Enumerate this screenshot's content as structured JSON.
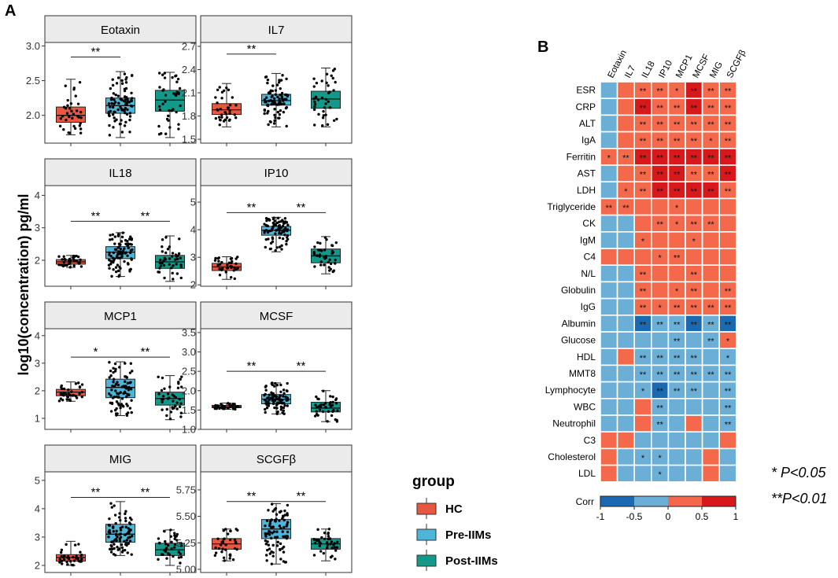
{
  "figure": {
    "panel_a_label": "A",
    "panel_b_label": "B",
    "y_axis_label": "log10(concentration) pg/ml",
    "legend": {
      "title": "group",
      "items": [
        {
          "label": "HC",
          "color": "#E8573F"
        },
        {
          "label": "Pre-IIMs",
          "color": "#4CB5D8"
        },
        {
          "label": "Post-IIMs",
          "color": "#12998A"
        }
      ]
    },
    "significance_note_1": "*  P<0.05",
    "significance_note_2": "**P<0.01"
  },
  "chart_data": [
    {
      "type": "box",
      "title": "Eotaxin",
      "ylim": [
        1.6,
        3.05
      ],
      "yticks": [
        "2.0",
        "2.5",
        "3.0"
      ],
      "groups": [
        "HC",
        "Pre-IIMs",
        "Post-IIMs"
      ],
      "boxes": [
        {
          "min": 1.72,
          "q1": 1.9,
          "median": 2.0,
          "q3": 2.12,
          "max": 2.52
        },
        {
          "min": 1.68,
          "q1": 2.03,
          "median": 2.14,
          "q3": 2.25,
          "max": 2.63
        },
        {
          "min": 1.68,
          "q1": 2.06,
          "median": 2.22,
          "q3": 2.36,
          "max": 2.62
        }
      ],
      "n_points": [
        35,
        85,
        40
      ],
      "comparisons": [
        {
          "from": 0,
          "to": 1,
          "label": "**",
          "y": 2.84
        }
      ]
    },
    {
      "type": "box",
      "title": "IL7",
      "ylim": [
        1.45,
        2.75
      ],
      "yticks": [
        "1.5",
        "1.8",
        "2.1",
        "2.4",
        "2.7"
      ],
      "groups": [
        "HC",
        "Pre-IIMs",
        "Post-IIMs"
      ],
      "boxes": [
        {
          "min": 1.66,
          "q1": 1.82,
          "median": 1.88,
          "q3": 1.96,
          "max": 2.22
        },
        {
          "min": 1.66,
          "q1": 1.94,
          "median": 2.0,
          "q3": 2.08,
          "max": 2.35
        },
        {
          "min": 1.66,
          "q1": 1.9,
          "median": 2.02,
          "q3": 2.12,
          "max": 2.42
        }
      ],
      "n_points": [
        35,
        85,
        40
      ],
      "comparisons": [
        {
          "from": 0,
          "to": 1,
          "label": "**",
          "y": 2.6
        }
      ]
    },
    {
      "type": "box",
      "title": "IL18",
      "ylim": [
        1.2,
        4.3
      ],
      "yticks": [
        "2",
        "3",
        "4"
      ],
      "groups": [
        "HC",
        "Pre-IIMs",
        "Post-IIMs"
      ],
      "boxes": [
        {
          "min": 1.78,
          "q1": 1.88,
          "median": 1.95,
          "q3": 2.02,
          "max": 2.15
        },
        {
          "min": 1.5,
          "q1": 2.05,
          "median": 2.25,
          "q3": 2.42,
          "max": 2.85
        },
        {
          "min": 1.35,
          "q1": 1.75,
          "median": 1.95,
          "q3": 2.15,
          "max": 2.75
        }
      ],
      "n_points": [
        35,
        85,
        40
      ],
      "comparisons": [
        {
          "from": 0,
          "to": 1,
          "label": "**",
          "y": 3.2
        },
        {
          "from": 1,
          "to": 2,
          "label": "**",
          "y": 3.2
        }
      ]
    },
    {
      "type": "box",
      "title": "IP10",
      "ylim": [
        1.95,
        5.6
      ],
      "yticks": [
        "2",
        "3",
        "4",
        "5"
      ],
      "groups": [
        "HC",
        "Pre-IIMs",
        "Post-IIMs"
      ],
      "boxes": [
        {
          "min": 2.2,
          "q1": 2.52,
          "median": 2.65,
          "q3": 2.78,
          "max": 3.02
        },
        {
          "min": 3.2,
          "q1": 3.8,
          "median": 3.98,
          "q3": 4.12,
          "max": 4.45
        },
        {
          "min": 2.4,
          "q1": 2.8,
          "median": 3.05,
          "q3": 3.3,
          "max": 3.75
        }
      ],
      "n_points": [
        35,
        85,
        40
      ],
      "comparisons": [
        {
          "from": 0,
          "to": 1,
          "label": "**",
          "y": 4.62
        },
        {
          "from": 1,
          "to": 2,
          "label": "**",
          "y": 4.62
        }
      ]
    },
    {
      "type": "box",
      "title": "MCP1",
      "ylim": [
        0.6,
        4.25
      ],
      "yticks": [
        "1",
        "2",
        "3",
        "4"
      ],
      "groups": [
        "HC",
        "Pre-IIMs",
        "Post-IIMs"
      ],
      "boxes": [
        {
          "min": 1.62,
          "q1": 1.82,
          "median": 1.95,
          "q3": 2.05,
          "max": 2.32
        },
        {
          "min": 1.1,
          "q1": 1.75,
          "median": 2.12,
          "q3": 2.42,
          "max": 3.05
        },
        {
          "min": 0.95,
          "q1": 1.48,
          "median": 1.72,
          "q3": 1.95,
          "max": 2.55
        }
      ],
      "n_points": [
        35,
        85,
        40
      ],
      "comparisons": [
        {
          "from": 0,
          "to": 1,
          "label": "*",
          "y": 3.22
        },
        {
          "from": 1,
          "to": 2,
          "label": "**",
          "y": 3.22
        }
      ]
    },
    {
      "type": "box",
      "title": "MCSF",
      "ylim": [
        1.0,
        3.6
      ],
      "yticks": [
        "1.0",
        "1.5",
        "2.0",
        "2.5",
        "3.0",
        "3.5"
      ],
      "groups": [
        "HC",
        "Pre-IIMs",
        "Post-IIMs"
      ],
      "boxes": [
        {
          "min": 1.52,
          "q1": 1.56,
          "median": 1.58,
          "q3": 1.62,
          "max": 1.68
        },
        {
          "min": 1.4,
          "q1": 1.66,
          "median": 1.78,
          "q3": 1.9,
          "max": 2.2
        },
        {
          "min": 1.2,
          "q1": 1.45,
          "median": 1.55,
          "q3": 1.7,
          "max": 2.0
        }
      ],
      "n_points": [
        35,
        85,
        40
      ],
      "comparisons": [
        {
          "from": 0,
          "to": 1,
          "label": "**",
          "y": 2.5
        },
        {
          "from": 1,
          "to": 2,
          "label": "**",
          "y": 2.5
        }
      ]
    },
    {
      "type": "box",
      "title": "MIG",
      "ylim": [
        1.75,
        5.3
      ],
      "yticks": [
        "2",
        "3",
        "4",
        "5"
      ],
      "groups": [
        "HC",
        "Pre-IIMs",
        "Post-IIMs"
      ],
      "boxes": [
        {
          "min": 2.0,
          "q1": 2.15,
          "median": 2.28,
          "q3": 2.38,
          "max": 2.85
        },
        {
          "min": 2.35,
          "q1": 2.82,
          "median": 3.1,
          "q3": 3.45,
          "max": 4.25
        },
        {
          "min": 2.0,
          "q1": 2.35,
          "median": 2.55,
          "q3": 2.78,
          "max": 3.25
        }
      ],
      "n_points": [
        35,
        85,
        40
      ],
      "comparisons": [
        {
          "from": 0,
          "to": 1,
          "label": "**",
          "y": 4.4
        },
        {
          "from": 1,
          "to": 2,
          "label": "**",
          "y": 4.4
        }
      ]
    },
    {
      "type": "box",
      "title": "SCGFβ",
      "ylim": [
        4.97,
        5.92
      ],
      "yticks": [
        "5.00",
        "5.25",
        "5.50",
        "5.75"
      ],
      "groups": [
        "HC",
        "Pre-IIMs",
        "Post-IIMs"
      ],
      "boxes": [
        {
          "min": 5.08,
          "q1": 5.19,
          "median": 5.24,
          "q3": 5.29,
          "max": 5.38
        },
        {
          "min": 5.05,
          "q1": 5.29,
          "median": 5.38,
          "q3": 5.47,
          "max": 5.62
        },
        {
          "min": 5.08,
          "q1": 5.19,
          "median": 5.24,
          "q3": 5.29,
          "max": 5.38
        }
      ],
      "n_points": [
        35,
        85,
        40
      ],
      "comparisons": [
        {
          "from": 0,
          "to": 1,
          "label": "**",
          "y": 5.64
        },
        {
          "from": 1,
          "to": 2,
          "label": "**",
          "y": 5.64
        }
      ]
    },
    {
      "type": "heatmap",
      "title": "",
      "columns": [
        "Eotaxin",
        "IL7",
        "IL18",
        "IP10",
        "MCP1",
        "MCSF",
        "MIG",
        "SCGFβ"
      ],
      "rows": [
        "ESR",
        "CRP",
        "ALT",
        "IgA",
        "Ferritin",
        "AST",
        "LDH",
        "Triglyceride",
        "CK",
        "IgM",
        "C4",
        "N/L",
        "Globulin",
        "IgG",
        "Albumin",
        "Glucose",
        "HDL",
        "MMT8",
        "Lymphocyte",
        "WBC",
        "Neutrophil",
        "C3",
        "Cholesterol",
        "LDL"
      ],
      "values": [
        [
          -0.3,
          0.3,
          0.4,
          0.4,
          0.4,
          0.6,
          0.4,
          0.4
        ],
        [
          -0.3,
          0.3,
          0.6,
          0.4,
          0.4,
          0.6,
          0.4,
          0.4
        ],
        [
          -0.3,
          0.3,
          0.4,
          0.4,
          0.4,
          0.4,
          0.4,
          0.4
        ],
        [
          -0.3,
          0.3,
          0.4,
          0.4,
          0.4,
          0.4,
          0.4,
          0.4
        ],
        [
          0.3,
          0.3,
          0.6,
          0.6,
          0.6,
          0.6,
          0.6,
          0.6
        ],
        [
          -0.3,
          0.3,
          0.4,
          0.6,
          0.6,
          0.4,
          0.4,
          0.6
        ],
        [
          -0.3,
          0.3,
          0.4,
          0.6,
          0.6,
          0.6,
          0.6,
          0.4
        ],
        [
          0.4,
          0.4,
          0.3,
          0.3,
          0.3,
          0.3,
          0.3,
          0.3
        ],
        [
          -0.3,
          -0.3,
          0.3,
          0.4,
          0.3,
          0.4,
          0.4,
          0.3
        ],
        [
          -0.3,
          -0.3,
          0.3,
          0.3,
          0.3,
          0.3,
          0.3,
          0.3
        ],
        [
          0.3,
          0.3,
          0.3,
          0.3,
          0.4,
          0.3,
          0.3,
          0.3
        ],
        [
          -0.3,
          -0.3,
          0.4,
          0.3,
          0.3,
          0.4,
          0.3,
          0.3
        ],
        [
          -0.3,
          -0.3,
          0.4,
          0.3,
          0.3,
          0.4,
          0.3,
          0.4
        ],
        [
          -0.3,
          -0.3,
          0.4,
          0.3,
          0.4,
          0.4,
          0.4,
          0.4
        ],
        [
          -0.3,
          -0.3,
          -0.6,
          -0.4,
          -0.4,
          -0.6,
          -0.4,
          -0.6
        ],
        [
          -0.3,
          -0.3,
          -0.3,
          -0.3,
          -0.4,
          -0.3,
          -0.4,
          0.4
        ],
        [
          -0.3,
          0.3,
          -0.4,
          -0.4,
          -0.4,
          -0.4,
          -0.3,
          -0.3
        ],
        [
          -0.3,
          -0.3,
          -0.4,
          -0.4,
          -0.4,
          -0.4,
          -0.4,
          -0.4
        ],
        [
          -0.3,
          -0.3,
          -0.3,
          -0.6,
          -0.4,
          -0.4,
          -0.3,
          -0.4
        ],
        [
          -0.3,
          -0.3,
          0.3,
          -0.4,
          -0.3,
          -0.3,
          -0.3,
          -0.4
        ],
        [
          -0.3,
          -0.3,
          0.3,
          -0.4,
          -0.3,
          0.3,
          -0.3,
          -0.4
        ],
        [
          0.3,
          0.3,
          -0.3,
          -0.3,
          -0.3,
          -0.3,
          -0.3,
          0.3
        ],
        [
          0.3,
          -0.3,
          -0.3,
          -0.3,
          -0.3,
          -0.3,
          0.3,
          -0.3
        ],
        [
          0.3,
          -0.3,
          -0.3,
          -0.3,
          -0.3,
          -0.3,
          0.3,
          -0.3
        ]
      ],
      "stars": [
        [
          "",
          "",
          "**",
          "**",
          "*",
          "**",
          "**",
          "**"
        ],
        [
          "",
          "",
          "**",
          "**",
          "**",
          "**",
          "**",
          "**"
        ],
        [
          "",
          "",
          "**",
          "**",
          "**",
          "**",
          "**",
          "**"
        ],
        [
          "",
          "",
          "**",
          "**",
          "**",
          "**",
          "*",
          "**"
        ],
        [
          "*",
          "**",
          "**",
          "**",
          "**",
          "**",
          "**",
          "**"
        ],
        [
          "",
          "",
          "**",
          "**",
          "**",
          "**",
          "**",
          "**"
        ],
        [
          "",
          "*",
          "**",
          "**",
          "**",
          "**",
          "**",
          "**"
        ],
        [
          "**",
          "**",
          "",
          "",
          "*",
          "",
          "",
          ""
        ],
        [
          "",
          "",
          "",
          "**",
          "*",
          "**",
          "**",
          ""
        ],
        [
          "",
          "",
          "*",
          "",
          "",
          "*",
          "",
          ""
        ],
        [
          "",
          "",
          "",
          "*",
          "**",
          "",
          "",
          ""
        ],
        [
          "",
          "",
          "**",
          "",
          "",
          "**",
          "",
          ""
        ],
        [
          "",
          "",
          "**",
          "",
          "*",
          "**",
          "",
          "**"
        ],
        [
          "",
          "",
          "**",
          "*",
          "**",
          "**",
          "**",
          "**"
        ],
        [
          "",
          "",
          "**",
          "**",
          "**",
          "**",
          "**",
          "**"
        ],
        [
          "",
          "",
          "",
          "",
          "**",
          "",
          "**",
          "*"
        ],
        [
          "",
          "",
          "**",
          "**",
          "**",
          "**",
          "",
          "*"
        ],
        [
          "",
          "",
          "**",
          "**",
          "**",
          "**",
          "**",
          "**"
        ],
        [
          "",
          "",
          "*",
          "**",
          "**",
          "**",
          "",
          "**"
        ],
        [
          "",
          "",
          "",
          "**",
          "",
          "",
          "",
          "**"
        ],
        [
          "",
          "",
          "",
          "**",
          "",
          "",
          "",
          "**"
        ],
        [
          "",
          "",
          "",
          "",
          "",
          "",
          "",
          ""
        ],
        [
          "",
          "",
          "*",
          "*",
          "",
          "",
          "",
          ""
        ],
        [
          "",
          "",
          "",
          "*",
          "",
          "",
          "",
          ""
        ]
      ],
      "colorbar": {
        "label": "Corr",
        "range": [
          -1,
          1
        ],
        "ticks": [
          "-1",
          "-0.5",
          "0",
          "0.5",
          "1"
        ],
        "colors": [
          "#1B6AB1",
          "#6BAED6",
          "#F4694C",
          "#D7191C"
        ]
      }
    }
  ]
}
